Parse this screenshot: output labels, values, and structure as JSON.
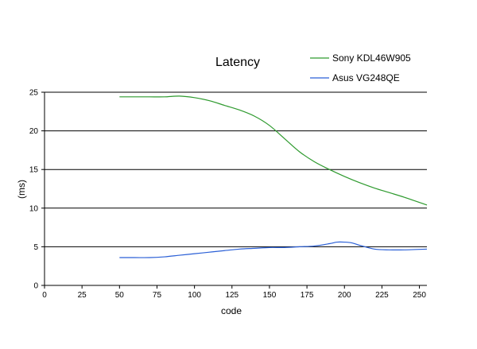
{
  "chart_data": {
    "type": "line",
    "title": "Latency",
    "xlabel": "code",
    "ylabel": "(ms)",
    "xlim": [
      0,
      255
    ],
    "ylim": [
      0,
      25
    ],
    "x_ticks": [
      0,
      25,
      50,
      75,
      100,
      125,
      150,
      175,
      200,
      225,
      250
    ],
    "y_ticks": [
      0,
      5,
      10,
      15,
      20,
      25
    ],
    "grid": "horizontal",
    "legend": "top-right",
    "series": [
      {
        "name": "Sony KDL46W905",
        "color": "#2e9a2e",
        "x": [
          50,
          60,
          70,
          80,
          90,
          100,
          110,
          120,
          130,
          140,
          150,
          160,
          170,
          180,
          190,
          200,
          210,
          220,
          230,
          240,
          255
        ],
        "y": [
          24.4,
          24.4,
          24.4,
          24.4,
          24.5,
          24.3,
          23.9,
          23.3,
          22.7,
          21.9,
          20.7,
          19.0,
          17.3,
          16.0,
          15.0,
          14.1,
          13.3,
          12.6,
          12.0,
          11.4,
          10.4
        ]
      },
      {
        "name": "Asus VG248QE",
        "color": "#2a5fd6",
        "x": [
          50,
          60,
          70,
          80,
          90,
          100,
          110,
          120,
          130,
          140,
          150,
          160,
          170,
          180,
          190,
          195,
          200,
          205,
          210,
          220,
          230,
          240,
          255
        ],
        "y": [
          3.6,
          3.6,
          3.6,
          3.7,
          3.9,
          4.1,
          4.3,
          4.5,
          4.7,
          4.8,
          4.9,
          4.9,
          5.0,
          5.1,
          5.4,
          5.6,
          5.6,
          5.5,
          5.2,
          4.7,
          4.6,
          4.6,
          4.7
        ]
      }
    ]
  }
}
